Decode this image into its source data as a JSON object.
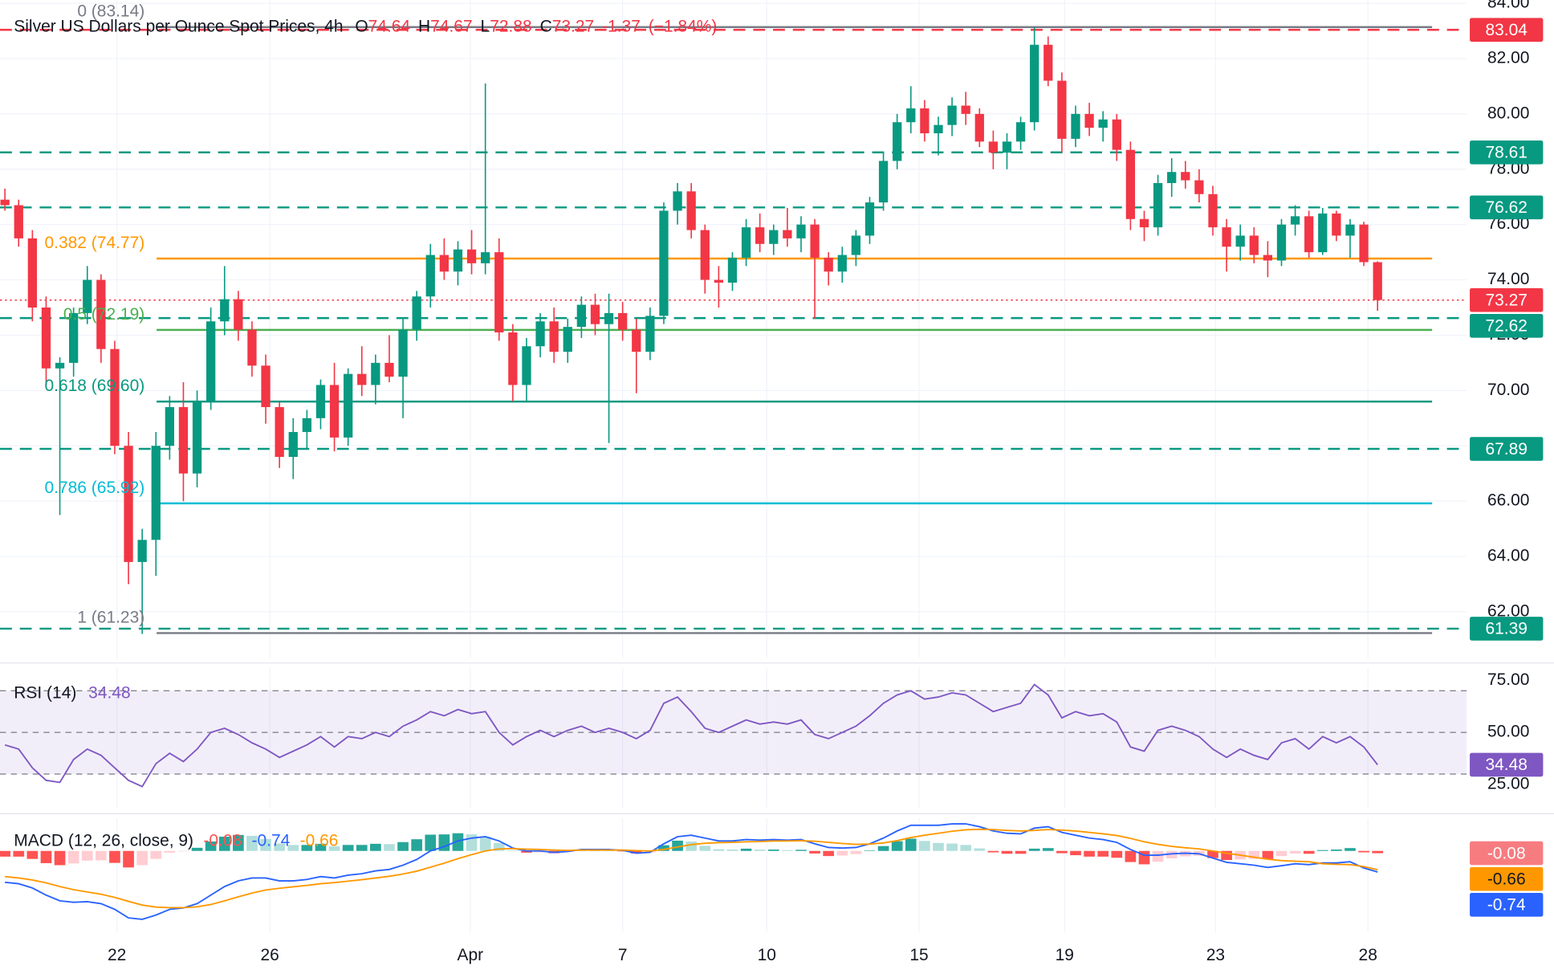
{
  "chart_data": [
    {
      "type": "candlestick",
      "title": "Silver US Dollars per Ounce Spot Prices, 4h",
      "ohlc": [
        {
          "label": "O",
          "value": 74.64
        },
        {
          "label": "H",
          "value": 74.67
        },
        {
          "label": "L",
          "value": 72.88
        },
        {
          "label": "C",
          "value": 73.27
        }
      ],
      "change": -1.37,
      "change_pct": "(−1.84%)",
      "up_color": "#089981",
      "down_color": "#f23645",
      "candles": [
        [
          76.9,
          77.3,
          76.5,
          76.7
        ],
        [
          76.7,
          76.9,
          75.2,
          75.5
        ],
        [
          75.5,
          75.8,
          72.5,
          73.0
        ],
        [
          73.0,
          73.4,
          70.2,
          70.8
        ],
        [
          70.8,
          71.2,
          65.5,
          71.0
        ],
        [
          71.0,
          73.0,
          70.5,
          72.8
        ],
        [
          72.8,
          74.5,
          72.4,
          74.0
        ],
        [
          74.0,
          74.2,
          71.0,
          71.5
        ],
        [
          71.5,
          71.8,
          67.7,
          68.0
        ],
        [
          68.0,
          68.5,
          63.0,
          63.8
        ],
        [
          63.8,
          65.0,
          61.2,
          64.6
        ],
        [
          64.6,
          68.5,
          63.3,
          68.0
        ],
        [
          68.0,
          69.8,
          67.5,
          69.4
        ],
        [
          69.4,
          70.3,
          66.0,
          67.0
        ],
        [
          67.0,
          70.0,
          66.5,
          69.6
        ],
        [
          69.6,
          73.0,
          69.3,
          72.5
        ],
        [
          72.5,
          74.5,
          72.0,
          73.3
        ],
        [
          73.3,
          73.6,
          71.8,
          72.2
        ],
        [
          72.2,
          72.5,
          70.5,
          70.9
        ],
        [
          70.9,
          71.3,
          68.8,
          69.4
        ],
        [
          69.4,
          69.6,
          67.2,
          67.6
        ],
        [
          67.6,
          69.0,
          66.8,
          68.5
        ],
        [
          68.5,
          69.3,
          67.9,
          69.0
        ],
        [
          69.0,
          70.4,
          68.6,
          70.2
        ],
        [
          70.2,
          71.0,
          67.8,
          68.3
        ],
        [
          68.3,
          70.8,
          68.0,
          70.6
        ],
        [
          70.6,
          71.6,
          69.8,
          70.2
        ],
        [
          70.2,
          71.3,
          69.5,
          71.0
        ],
        [
          71.0,
          72.0,
          70.3,
          70.5
        ],
        [
          70.5,
          72.6,
          69.0,
          72.2
        ],
        [
          72.2,
          73.6,
          71.8,
          73.4
        ],
        [
          73.4,
          75.3,
          73.0,
          74.9
        ],
        [
          74.9,
          75.5,
          74.0,
          74.3
        ],
        [
          74.3,
          75.4,
          73.8,
          75.1
        ],
        [
          75.1,
          75.8,
          74.2,
          74.6
        ],
        [
          74.6,
          81.1,
          74.2,
          75.0
        ],
        [
          75.0,
          75.5,
          71.8,
          72.1
        ],
        [
          72.1,
          72.4,
          69.6,
          70.2
        ],
        [
          70.2,
          71.9,
          69.6,
          71.6
        ],
        [
          71.6,
          72.8,
          71.2,
          72.5
        ],
        [
          72.5,
          73.0,
          71.0,
          71.4
        ],
        [
          71.4,
          72.6,
          71.0,
          72.3
        ],
        [
          72.3,
          73.4,
          71.9,
          73.1
        ],
        [
          73.1,
          73.5,
          72.0,
          72.4
        ],
        [
          72.4,
          73.5,
          68.1,
          72.8
        ],
        [
          72.8,
          73.2,
          71.8,
          72.2
        ],
        [
          72.2,
          72.6,
          69.9,
          71.4
        ],
        [
          71.4,
          73.0,
          71.1,
          72.7
        ],
        [
          72.7,
          76.8,
          72.4,
          76.5
        ],
        [
          76.5,
          77.5,
          76.0,
          77.2
        ],
        [
          77.2,
          77.5,
          75.5,
          75.8
        ],
        [
          75.8,
          76.0,
          73.5,
          74.0
        ],
        [
          74.0,
          74.5,
          73.0,
          73.9
        ],
        [
          73.9,
          75.0,
          73.6,
          74.8
        ],
        [
          74.8,
          76.2,
          74.5,
          75.9
        ],
        [
          75.9,
          76.4,
          75.0,
          75.3
        ],
        [
          75.3,
          76.0,
          74.9,
          75.8
        ],
        [
          75.8,
          76.6,
          75.2,
          75.5
        ],
        [
          75.5,
          76.3,
          75.0,
          76.0
        ],
        [
          76.0,
          76.2,
          72.6,
          74.8
        ],
        [
          74.8,
          75.0,
          73.8,
          74.3
        ],
        [
          74.3,
          75.2,
          73.9,
          74.9
        ],
        [
          74.9,
          75.8,
          74.5,
          75.6
        ],
        [
          75.6,
          77.0,
          75.3,
          76.8
        ],
        [
          76.8,
          78.6,
          76.5,
          78.3
        ],
        [
          78.3,
          80.0,
          78.0,
          79.7
        ],
        [
          79.7,
          81.0,
          79.3,
          80.2
        ],
        [
          80.2,
          80.5,
          79.0,
          79.3
        ],
        [
          79.3,
          79.9,
          78.5,
          79.6
        ],
        [
          79.6,
          80.6,
          79.2,
          80.3
        ],
        [
          80.3,
          80.8,
          79.6,
          80.0
        ],
        [
          80.0,
          80.2,
          78.8,
          79.0
        ],
        [
          79.0,
          79.4,
          78.0,
          78.6
        ],
        [
          78.6,
          79.3,
          78.0,
          79.0
        ],
        [
          79.0,
          79.9,
          78.7,
          79.7
        ],
        [
          79.7,
          83.14,
          79.4,
          82.5
        ],
        [
          82.5,
          82.8,
          81.0,
          81.2
        ],
        [
          81.2,
          81.5,
          78.6,
          79.1
        ],
        [
          79.1,
          80.3,
          78.8,
          80.0
        ],
        [
          80.0,
          80.4,
          79.2,
          79.5
        ],
        [
          79.5,
          80.1,
          79.0,
          79.8
        ],
        [
          79.8,
          80.0,
          78.3,
          78.7
        ],
        [
          78.7,
          79.0,
          75.8,
          76.2
        ],
        [
          76.2,
          76.5,
          75.4,
          75.9
        ],
        [
          75.9,
          77.8,
          75.6,
          77.5
        ],
        [
          77.5,
          78.4,
          77.0,
          77.9
        ],
        [
          77.9,
          78.3,
          77.3,
          77.6
        ],
        [
          77.6,
          78.0,
          76.8,
          77.1
        ],
        [
          77.1,
          77.4,
          75.6,
          75.9
        ],
        [
          75.9,
          76.2,
          74.3,
          75.2
        ],
        [
          75.2,
          76.0,
          74.7,
          75.6
        ],
        [
          75.6,
          75.9,
          74.6,
          74.9
        ],
        [
          74.9,
          75.4,
          74.1,
          74.7
        ],
        [
          74.7,
          76.2,
          74.5,
          76.0
        ],
        [
          76.0,
          76.7,
          75.6,
          76.3
        ],
        [
          76.3,
          76.5,
          74.8,
          75.0
        ],
        [
          75.0,
          76.6,
          74.9,
          76.4
        ],
        [
          76.4,
          76.5,
          75.4,
          75.6
        ],
        [
          75.6,
          76.2,
          74.8,
          76.0
        ],
        [
          76.0,
          76.1,
          74.5,
          74.64
        ],
        [
          74.64,
          74.67,
          72.88,
          73.27
        ]
      ],
      "ylim": [
        60.31,
        84.11
      ],
      "yticks": [
        {
          "value": 84,
          "label": "84.00"
        },
        {
          "value": 82,
          "label": "82.00"
        },
        {
          "value": 80,
          "label": "80.00"
        },
        {
          "value": 78,
          "label": "78.00"
        },
        {
          "value": 76,
          "label": "76.00"
        },
        {
          "value": 74,
          "label": "74.00"
        },
        {
          "value": 72,
          "label": "72.00"
        },
        {
          "value": 70,
          "label": "70.00"
        },
        {
          "value": 68,
          "label": "68.00"
        },
        {
          "value": 66,
          "label": "66.00"
        },
        {
          "value": 64,
          "label": "64.00"
        },
        {
          "value": 62,
          "label": "62.00"
        }
      ],
      "xlim": [
        -0.36,
        106.5
      ],
      "xticks": [
        {
          "value": 8.16,
          "label": "22"
        },
        {
          "value": 19.3,
          "label": "26"
        },
        {
          "value": 33.9,
          "label": "Apr"
        },
        {
          "value": 45.0,
          "label": "7"
        },
        {
          "value": 55.5,
          "label": "10"
        },
        {
          "value": 66.6,
          "label": "15"
        },
        {
          "value": 77.2,
          "label": "19"
        },
        {
          "value": 88.2,
          "label": "23"
        },
        {
          "value": 99.3,
          "label": "28"
        }
      ],
      "grid": true,
      "levels": [
        {
          "price": 83.04,
          "color": "#f23645",
          "style": "dashed"
        },
        {
          "price": 78.61,
          "color": "#089981",
          "style": "dashed"
        },
        {
          "price": 76.62,
          "color": "#089981",
          "style": "dashed"
        },
        {
          "price": 73.27,
          "color": "#f23645",
          "style": "dotted"
        },
        {
          "price": 72.62,
          "color": "#089981",
          "style": "dashed"
        },
        {
          "price": 67.89,
          "color": "#089981",
          "style": "dashed"
        },
        {
          "price": 61.39,
          "color": "#089981",
          "style": "dashed"
        }
      ],
      "fib": [
        {
          "label": "0 (83.14)",
          "price": 83.14,
          "color": "#787b86"
        },
        {
          "label": "0.382 (74.77)",
          "price": 74.77,
          "color": "#ff9800"
        },
        {
          "label": "0.5 (72.19)",
          "price": 72.19,
          "color": "#4caf50"
        },
        {
          "label": "0.618 (69.60)",
          "price": 69.6,
          "color": "#089981"
        },
        {
          "label": "0.786 (65.92)",
          "price": 65.92,
          "color": "#00bcd4"
        },
        {
          "label": "1 (61.23)",
          "price": 61.23,
          "color": "#787b86"
        }
      ]
    },
    {
      "type": "rsi",
      "name": "RSI (14)",
      "current": 34.48,
      "color": "#7e57c2",
      "values": [
        44,
        42,
        33,
        27,
        26,
        37,
        42,
        39,
        33,
        27,
        24,
        35,
        40,
        36,
        42,
        50,
        52,
        49,
        45,
        42,
        38,
        41,
        44,
        48,
        43,
        48,
        47,
        50,
        48,
        53,
        56,
        60,
        58,
        61,
        59,
        60,
        50,
        44,
        48,
        51,
        48,
        51,
        53,
        50,
        52,
        50,
        47,
        51,
        64,
        67,
        60,
        52,
        50,
        53,
        56,
        54,
        55,
        54,
        56,
        49,
        47,
        50,
        53,
        58,
        64,
        68,
        70,
        66,
        67,
        69,
        68,
        64,
        60,
        62,
        64,
        73,
        68,
        57,
        60,
        58,
        59,
        55,
        43,
        41,
        51,
        53,
        51,
        48,
        42,
        38,
        42,
        39,
        37,
        45,
        47,
        42,
        48,
        45,
        48,
        43,
        34.48
      ],
      "band": [
        30,
        70
      ],
      "levels": [
        70,
        50,
        30
      ],
      "ylim": [
        13.6,
        81.2
      ],
      "yticks": [
        {
          "value": 75,
          "label": "75.00"
        },
        {
          "value": 50,
          "label": "50.00"
        },
        {
          "value": 25,
          "label": "25.00"
        }
      ]
    },
    {
      "type": "macd",
      "name": "MACD (12, 26, close, 9)",
      "current": {
        "histogram": -0.08,
        "macd": -0.74,
        "signal": -0.66
      },
      "macd_color": "#2962ff",
      "signal_color": "#ff9800",
      "hist_colors": [
        "#26a69a",
        "#b2dfdb",
        "#ffcdd2",
        "#ff5252"
      ],
      "macd": [
        -1.1,
        -1.15,
        -1.3,
        -1.55,
        -1.75,
        -1.8,
        -1.78,
        -1.85,
        -2.05,
        -2.35,
        -2.4,
        -2.25,
        -2.05,
        -2.0,
        -1.85,
        -1.55,
        -1.25,
        -1.05,
        -0.95,
        -0.95,
        -1.05,
        -1.05,
        -1.0,
        -0.9,
        -0.95,
        -0.85,
        -0.8,
        -0.7,
        -0.65,
        -0.5,
        -0.3,
        0.0,
        0.15,
        0.35,
        0.45,
        0.5,
        0.35,
        0.1,
        0.0,
        0.0,
        -0.05,
        -0.02,
        0.05,
        0.05,
        0.05,
        0.02,
        -0.08,
        -0.05,
        0.25,
        0.5,
        0.55,
        0.45,
        0.35,
        0.35,
        0.4,
        0.38,
        0.4,
        0.38,
        0.4,
        0.25,
        0.12,
        0.1,
        0.12,
        0.25,
        0.45,
        0.7,
        0.9,
        0.9,
        0.9,
        0.95,
        0.95,
        0.85,
        0.7,
        0.62,
        0.6,
        0.8,
        0.85,
        0.65,
        0.55,
        0.45,
        0.4,
        0.3,
        0.05,
        -0.15,
        -0.15,
        -0.1,
        -0.08,
        -0.1,
        -0.25,
        -0.4,
        -0.45,
        -0.5,
        -0.58,
        -0.52,
        -0.45,
        -0.48,
        -0.42,
        -0.42,
        -0.38,
        -0.6,
        -0.74
      ],
      "signal": [
        -0.9,
        -0.95,
        -1.02,
        -1.12,
        -1.25,
        -1.36,
        -1.44,
        -1.52,
        -1.63,
        -1.77,
        -1.9,
        -1.97,
        -1.99,
        -1.99,
        -1.96,
        -1.88,
        -1.75,
        -1.61,
        -1.48,
        -1.37,
        -1.31,
        -1.26,
        -1.21,
        -1.15,
        -1.11,
        -1.06,
        -1.01,
        -0.95,
        -0.89,
        -0.81,
        -0.71,
        -0.57,
        -0.43,
        -0.27,
        -0.13,
        0.0,
        0.07,
        0.08,
        0.06,
        0.05,
        0.03,
        0.02,
        0.03,
        0.03,
        0.03,
        0.03,
        0.01,
        0.0,
        0.05,
        0.14,
        0.22,
        0.27,
        0.29,
        0.3,
        0.32,
        0.33,
        0.35,
        0.35,
        0.36,
        0.34,
        0.3,
        0.26,
        0.23,
        0.24,
        0.28,
        0.36,
        0.47,
        0.55,
        0.62,
        0.69,
        0.74,
        0.76,
        0.75,
        0.72,
        0.7,
        0.72,
        0.75,
        0.73,
        0.7,
        0.65,
        0.6,
        0.54,
        0.44,
        0.32,
        0.23,
        0.16,
        0.11,
        0.07,
        0.0,
        -0.08,
        -0.15,
        -0.22,
        -0.29,
        -0.34,
        -0.36,
        -0.38,
        -0.45,
        -0.47,
        -0.48,
        -0.55,
        -0.66
      ],
      "histogram": [
        -0.2,
        -0.2,
        -0.28,
        -0.43,
        -0.5,
        -0.44,
        -0.34,
        -0.33,
        -0.42,
        -0.58,
        -0.5,
        -0.28,
        -0.06,
        -0.01,
        0.11,
        0.33,
        0.5,
        0.56,
        0.53,
        0.42,
        0.26,
        0.21,
        0.21,
        0.25,
        0.16,
        0.21,
        0.21,
        0.25,
        0.24,
        0.31,
        0.41,
        0.57,
        0.58,
        0.62,
        0.58,
        0.5,
        0.28,
        0.02,
        -0.06,
        -0.05,
        -0.08,
        -0.04,
        0.02,
        0.02,
        0.02,
        -0.01,
        -0.09,
        -0.05,
        0.2,
        0.36,
        0.33,
        0.18,
        0.06,
        0.05,
        0.08,
        0.05,
        0.05,
        0.03,
        0.04,
        -0.09,
        -0.18,
        -0.16,
        -0.11,
        0.01,
        0.17,
        0.34,
        0.43,
        0.35,
        0.28,
        0.26,
        0.21,
        0.09,
        -0.05,
        -0.1,
        -0.1,
        0.08,
        0.1,
        -0.08,
        -0.15,
        -0.2,
        -0.2,
        -0.24,
        -0.39,
        -0.47,
        -0.38,
        -0.26,
        -0.19,
        -0.17,
        -0.25,
        -0.32,
        -0.3,
        -0.28,
        -0.29,
        -0.18,
        -0.09,
        -0.1,
        0.03,
        0.05,
        0.1,
        -0.05,
        -0.08
      ],
      "ylim": [
        -2.85,
        1.15
      ]
    }
  ]
}
